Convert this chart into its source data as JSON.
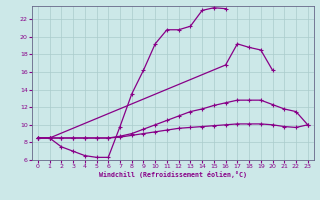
{
  "xlabel": "Windchill (Refroidissement éolien,°C)",
  "bg_color": "#cce8e8",
  "line_color": "#880088",
  "grid_color": "#aacccc",
  "axis_color": "#666688",
  "xlim": [
    -0.5,
    23.5
  ],
  "ylim": [
    6,
    23.5
  ],
  "yticks": [
    6,
    8,
    10,
    12,
    14,
    16,
    18,
    20,
    22
  ],
  "xticks": [
    0,
    1,
    2,
    3,
    4,
    5,
    6,
    7,
    8,
    9,
    10,
    11,
    12,
    13,
    14,
    15,
    16,
    17,
    18,
    19,
    20,
    21,
    22,
    23
  ],
  "s1x": [
    0,
    1,
    2,
    3,
    4,
    5,
    6,
    7,
    8,
    9,
    10,
    11,
    12,
    13,
    14,
    15,
    16
  ],
  "s1y": [
    8.5,
    8.5,
    7.5,
    7.0,
    6.5,
    6.3,
    6.3,
    9.8,
    13.5,
    16.2,
    19.2,
    20.8,
    20.8,
    21.2,
    23.0,
    23.3,
    23.2
  ],
  "s2x": [
    0,
    1,
    16,
    17,
    18,
    19,
    20
  ],
  "s2y": [
    8.5,
    8.5,
    16.8,
    19.2,
    18.8,
    18.5,
    16.2
  ],
  "s3x": [
    0,
    1,
    2,
    3,
    4,
    5,
    6,
    7,
    8,
    9,
    10,
    11,
    12,
    13,
    14,
    15,
    16,
    17,
    18,
    19,
    20,
    21,
    22,
    23
  ],
  "s3y": [
    8.5,
    8.5,
    8.5,
    8.5,
    8.5,
    8.5,
    8.5,
    8.7,
    9.0,
    9.5,
    10.0,
    10.5,
    11.0,
    11.5,
    11.8,
    12.2,
    12.5,
    12.8,
    12.8,
    12.8,
    12.3,
    11.8,
    11.5,
    10.0
  ],
  "s4x": [
    0,
    1,
    2,
    3,
    4,
    5,
    6,
    7,
    8,
    9,
    10,
    11,
    12,
    13,
    14,
    15,
    16,
    17,
    18,
    19,
    20,
    21,
    22,
    23
  ],
  "s4y": [
    8.5,
    8.5,
    8.5,
    8.5,
    8.5,
    8.5,
    8.5,
    8.6,
    8.8,
    9.0,
    9.2,
    9.4,
    9.6,
    9.7,
    9.8,
    9.9,
    10.0,
    10.1,
    10.1,
    10.1,
    10.0,
    9.8,
    9.7,
    10.0
  ]
}
